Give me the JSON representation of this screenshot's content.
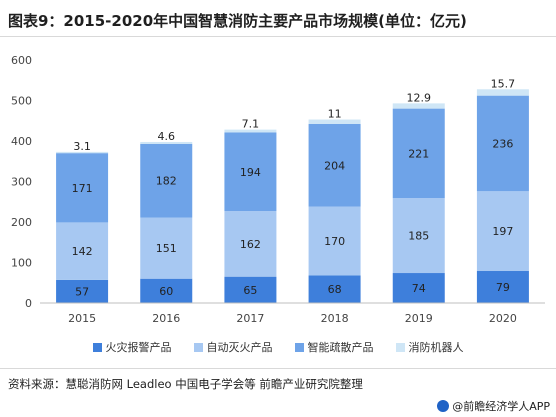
{
  "title": "图表9：2015-2020年中国智慧消防主要产品市场规模(单位：亿元)",
  "chart_data": {
    "type": "bar",
    "stacked": true,
    "categories": [
      "2015",
      "2016",
      "2017",
      "2018",
      "2019",
      "2020"
    ],
    "series": [
      {
        "name": "火灾报警产品",
        "values": [
          57,
          60,
          65,
          68,
          74,
          79
        ],
        "color": "#3e7fdb"
      },
      {
        "name": "自动灭火产品",
        "values": [
          142,
          151,
          162,
          170,
          185,
          197
        ],
        "color": "#a7c8f2"
      },
      {
        "name": "智能疏散产品",
        "values": [
          171,
          182,
          194,
          204,
          221,
          236
        ],
        "color": "#6ea3e8"
      },
      {
        "name": "消防机器人",
        "values": [
          3.1,
          4.6,
          7.1,
          11,
          12.9,
          15.7
        ],
        "color": "#cfe6f6"
      }
    ],
    "y_ticks": [
      "0",
      "100",
      "200",
      "300",
      "400",
      "500",
      "600"
    ],
    "ylim": [
      0,
      600
    ],
    "grid": false,
    "legend": "bottom"
  },
  "source": "资料来源：慧聪消防网 Leadleo 中国电子学会等 前瞻产业研究院整理",
  "brand": "@前瞻经济学人APP"
}
